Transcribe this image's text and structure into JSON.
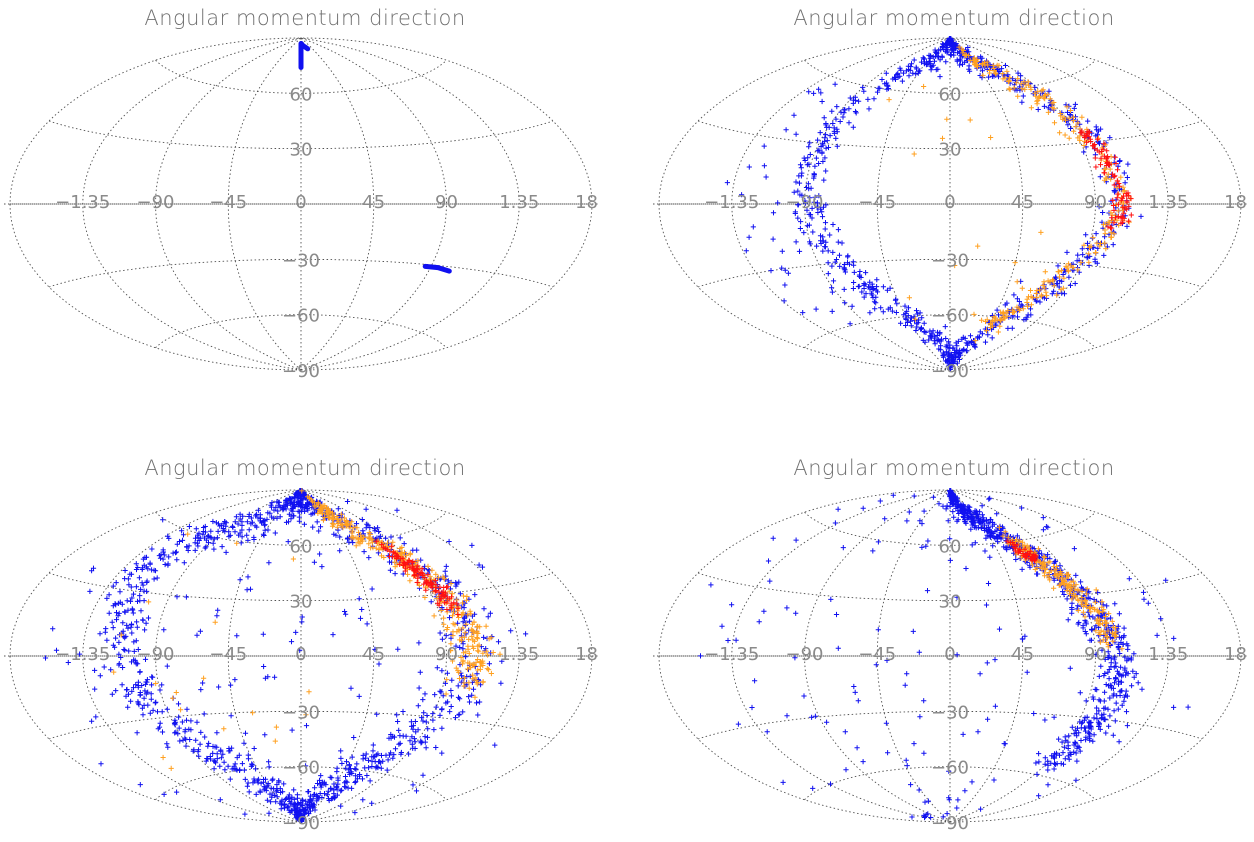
{
  "colors": {
    "grid": "#505050",
    "tick": "#8a8a8a",
    "title": "#6f6f6f",
    "blue": "#1010f0",
    "orange": "#ffa020",
    "red": "#ff1010"
  },
  "chart_data": [
    {
      "type": "scatter",
      "projection": "aitoff",
      "title": "Angular momentum direction",
      "lon_ticks": [
        "−1.35",
        "−90",
        "−45",
        "0",
        "45",
        "90",
        "1.35",
        "18"
      ],
      "lat_ticks": [
        "60",
        "30",
        "−30",
        "−60",
        "−90"
      ],
      "xlim": [
        -180,
        180
      ],
      "ylim": [
        -90,
        90
      ],
      "features": [
        {
          "kind": "segment",
          "color": "blue",
          "points": [
            [
              0,
              87
            ],
            [
              0,
              74
            ]
          ]
        },
        {
          "kind": "segment",
          "color": "blue",
          "points": [
            [
              2,
              87
            ],
            [
              10,
              86
            ],
            [
              20,
              85
            ],
            [
              27,
              84
            ]
          ]
        },
        {
          "kind": "segment",
          "color": "blue",
          "points": [
            [
              86,
              -31
            ],
            [
              95,
              -31
            ],
            [
              104,
              -32
            ]
          ]
        }
      ]
    },
    {
      "type": "scatter",
      "projection": "aitoff",
      "title": "Angular momentum direction",
      "lon_ticks": [
        "−1.35",
        "−90",
        "−45",
        "0",
        "45",
        "90",
        "1.35",
        "18"
      ],
      "lat_ticks": [
        "60",
        "30",
        "−30",
        "−60",
        "−90"
      ],
      "xlim": [
        -180,
        180
      ],
      "ylim": [
        -90,
        90
      ],
      "features": [
        {
          "kind": "band",
          "color": "blue",
          "width": 6,
          "n": 900,
          "points": [
            [
              0,
              89
            ],
            [
              -30,
              82
            ],
            [
              -70,
              70
            ],
            [
              -86,
              45
            ],
            [
              -89,
              20
            ],
            [
              -88,
              0
            ],
            [
              -80,
              -25
            ],
            [
              -62,
              -45
            ],
            [
              -42,
              -62
            ],
            [
              -18,
              -78
            ],
            [
              0,
              -87
            ],
            [
              30,
              -80
            ],
            [
              60,
              -60
            ],
            [
              85,
              -35
            ],
            [
              100,
              -12
            ],
            [
              106,
              0
            ],
            [
              104,
              20
            ],
            [
              95,
              45
            ],
            [
              70,
              68
            ],
            [
              30,
              84
            ],
            [
              0,
              89
            ]
          ]
        },
        {
          "kind": "band",
          "color": "orange",
          "width": 5,
          "n": 260,
          "points": [
            [
              40,
              82
            ],
            [
              70,
              66
            ],
            [
              90,
              45
            ],
            [
              103,
              20
            ],
            [
              106,
              0
            ],
            [
              100,
              -15
            ],
            [
              88,
              -30
            ],
            [
              70,
              -48
            ],
            [
              45,
              -66
            ]
          ]
        },
        {
          "kind": "band",
          "color": "red",
          "width": 3,
          "n": 90,
          "points": [
            [
              95,
              35
            ],
            [
              103,
              18
            ],
            [
              107,
              0
            ],
            [
              103,
              -10
            ]
          ]
        },
        {
          "kind": "cloud",
          "color": "blue",
          "n": 45,
          "region": [
            [
              -140,
              -80
            ],
            [
              -60,
              60
            ]
          ]
        },
        {
          "kind": "cloud",
          "color": "orange",
          "n": 18,
          "region": [
            [
              -60,
              60
            ],
            [
              -70,
              70
            ]
          ]
        }
      ]
    },
    {
      "type": "scatter",
      "projection": "aitoff",
      "title": "Angular momentum direction",
      "lon_ticks": [
        "−1.35",
        "−90",
        "−45",
        "0",
        "45",
        "90",
        "1.35",
        "18"
      ],
      "lat_ticks": [
        "60",
        "30",
        "−30",
        "−60",
        "−90"
      ],
      "xlim": [
        -180,
        180
      ],
      "ylim": [
        -90,
        90
      ],
      "features": [
        {
          "kind": "band",
          "color": "blue",
          "width": 9,
          "n": 1200,
          "points": [
            [
              0,
              89
            ],
            [
              -30,
              83
            ],
            [
              -75,
              72
            ],
            [
              -110,
              55
            ],
            [
              -120,
              30
            ],
            [
              -110,
              0
            ],
            [
              -95,
              -25
            ],
            [
              -75,
              -50
            ],
            [
              -50,
              -70
            ],
            [
              -20,
              -85
            ],
            [
              10,
              -85
            ],
            [
              40,
              -72
            ],
            [
              70,
              -55
            ],
            [
              90,
              -35
            ],
            [
              102,
              -12
            ],
            [
              108,
              5
            ],
            [
              100,
              35
            ],
            [
              80,
              60
            ],
            [
              45,
              80
            ],
            [
              0,
              89
            ]
          ]
        },
        {
          "kind": "band",
          "color": "orange",
          "width": 6,
          "n": 350,
          "points": [
            [
              40,
              82
            ],
            [
              65,
              68
            ],
            [
              85,
              50
            ],
            [
              98,
              30
            ],
            [
              105,
              12
            ],
            [
              108,
              0
            ],
            [
              103,
              -15
            ]
          ]
        },
        {
          "kind": "band",
          "color": "red",
          "width": 3,
          "n": 110,
          "points": [
            [
              80,
              55
            ],
            [
              88,
              45
            ],
            [
              96,
              32
            ],
            [
              100,
              22
            ]
          ]
        },
        {
          "kind": "cloud",
          "color": "blue",
          "n": 150,
          "region": [
            [
              -170,
              150
            ],
            [
              -85,
              80
            ]
          ]
        },
        {
          "kind": "cloud",
          "color": "orange",
          "n": 20,
          "region": [
            [
              -150,
              20
            ],
            [
              -60,
              60
            ]
          ]
        }
      ]
    },
    {
      "type": "scatter",
      "projection": "aitoff",
      "title": "Angular momentum direction",
      "lon_ticks": [
        "−1.35",
        "−90",
        "−45",
        "0",
        "45",
        "90",
        "1.35",
        "18"
      ],
      "lat_ticks": [
        "60",
        "30",
        "−30",
        "−60",
        "−90"
      ],
      "xlim": [
        -180,
        180
      ],
      "ylim": [
        -90,
        90
      ],
      "features": [
        {
          "kind": "band",
          "color": "blue",
          "width": 6,
          "n": 700,
          "points": [
            [
              0,
              89
            ],
            [
              25,
              83
            ],
            [
              50,
              70
            ],
            [
              70,
              55
            ],
            [
              85,
              38
            ],
            [
              95,
              20
            ],
            [
              103,
              0
            ],
            [
              106,
              -10
            ],
            [
              100,
              -35
            ],
            [
              92,
              -50
            ]
          ]
        },
        {
          "kind": "band",
          "color": "orange",
          "width": 4,
          "n": 200,
          "points": [
            [
              65,
              60
            ],
            [
              75,
              48
            ],
            [
              85,
              35
            ],
            [
              95,
              20
            ],
            [
              100,
              8
            ]
          ]
        },
        {
          "kind": "band",
          "color": "red",
          "width": 2,
          "n": 45,
          "points": [
            [
              62,
              58
            ],
            [
              70,
              52
            ],
            [
              75,
              48
            ]
          ]
        },
        {
          "kind": "cloud",
          "color": "blue",
          "n": 170,
          "region": [
            [
              -170,
              160
            ],
            [
              -88,
              85
            ]
          ]
        }
      ]
    }
  ]
}
